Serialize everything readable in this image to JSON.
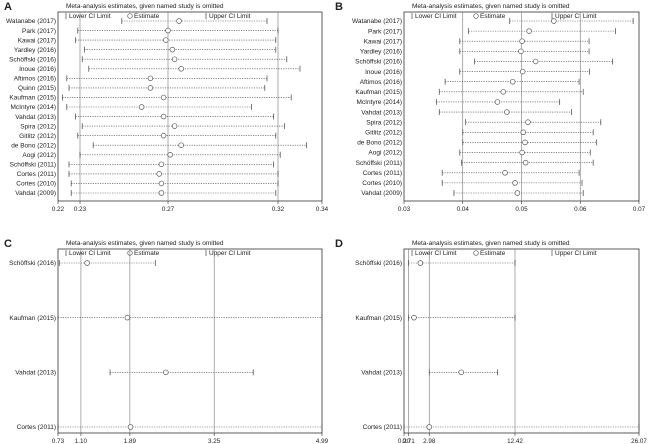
{
  "chart_data": [
    {
      "panel": "A",
      "type": "forest",
      "title": "Meta-analysis estimates, given named study is omitted",
      "legend": [
        "Lower CI Limit",
        "Estimate",
        "Upper CI Limit"
      ],
      "xticks": [
        0.22,
        0.23,
        0.27,
        0.32,
        0.34
      ],
      "xlim": [
        0.22,
        0.34
      ],
      "overall": {
        "lower": 0.23,
        "estimate": 0.27,
        "upper": 0.32
      },
      "studies": [
        {
          "name": "Watanabe (2017)",
          "lower": 0.249,
          "estimate": 0.275,
          "upper": 0.315
        },
        {
          "name": "Park (2017)",
          "lower": 0.229,
          "estimate": 0.27,
          "upper": 0.32
        },
        {
          "name": "Kawai (2017)",
          "lower": 0.228,
          "estimate": 0.269,
          "upper": 0.319
        },
        {
          "name": "Yardley (2016)",
          "lower": 0.232,
          "estimate": 0.272,
          "upper": 0.319
        },
        {
          "name": "Schöffski (2016)",
          "lower": 0.231,
          "estimate": 0.273,
          "upper": 0.324
        },
        {
          "name": "Inoue (2016)",
          "lower": 0.234,
          "estimate": 0.276,
          "upper": 0.33
        },
        {
          "name": "Aftimos (2016)",
          "lower": 0.224,
          "estimate": 0.262,
          "upper": 0.315
        },
        {
          "name": "Quinn (2015)",
          "lower": 0.225,
          "estimate": 0.262,
          "upper": 0.314
        },
        {
          "name": "Kaufman (2015)",
          "lower": 0.222,
          "estimate": 0.268,
          "upper": 0.326
        },
        {
          "name": "McIntyre (2014)",
          "lower": 0.224,
          "estimate": 0.258,
          "upper": 0.308
        },
        {
          "name": "Vahdat (2013)",
          "lower": 0.228,
          "estimate": 0.268,
          "upper": 0.318
        },
        {
          "name": "Spira (2012)",
          "lower": 0.231,
          "estimate": 0.273,
          "upper": 0.323
        },
        {
          "name": "Gitlitz (2012)",
          "lower": 0.229,
          "estimate": 0.268,
          "upper": 0.319
        },
        {
          "name": "de Bono (2012)",
          "lower": 0.236,
          "estimate": 0.276,
          "upper": 0.333
        },
        {
          "name": "Aogi (2012)",
          "lower": 0.23,
          "estimate": 0.271,
          "upper": 0.321
        },
        {
          "name": "Schöffski (2011)",
          "lower": 0.225,
          "estimate": 0.267,
          "upper": 0.318
        },
        {
          "name": "Cortes (2011)",
          "lower": 0.225,
          "estimate": 0.266,
          "upper": 0.32
        },
        {
          "name": "Cortes (2010)",
          "lower": 0.226,
          "estimate": 0.267,
          "upper": 0.32
        },
        {
          "name": "Vahdat (2009)",
          "lower": 0.226,
          "estimate": 0.267,
          "upper": 0.319
        }
      ]
    },
    {
      "panel": "B",
      "type": "forest",
      "title": "Meta-analysis estimates, given named study is omitted",
      "legend": [
        "Lower CI Limit",
        "Estimate",
        "Upper CI Limit"
      ],
      "xticks": [
        0.03,
        0.04,
        0.05,
        0.06,
        0.07
      ],
      "xlim": [
        0.03,
        0.07
      ],
      "overall": {
        "lower": 0.04,
        "estimate": 0.05,
        "upper": 0.06
      },
      "studies": [
        {
          "name": "Watanabe (2017)",
          "lower": 0.048,
          "estimate": 0.0555,
          "upper": 0.069
        },
        {
          "name": "Park (2017)",
          "lower": 0.041,
          "estimate": 0.0513,
          "upper": 0.066
        },
        {
          "name": "Kawai (2017)",
          "lower": 0.0395,
          "estimate": 0.0501,
          "upper": 0.0615
        },
        {
          "name": "Yardley (2016)",
          "lower": 0.0395,
          "estimate": 0.0499,
          "upper": 0.0615
        },
        {
          "name": "Schöffski (2016)",
          "lower": 0.042,
          "estimate": 0.0524,
          "upper": 0.0655
        },
        {
          "name": "Inoue (2016)",
          "lower": 0.0395,
          "estimate": 0.0502,
          "upper": 0.0616
        },
        {
          "name": "Aftimos (2016)",
          "lower": 0.037,
          "estimate": 0.0485,
          "upper": 0.0598
        },
        {
          "name": "Kaufman (2015)",
          "lower": 0.036,
          "estimate": 0.0469,
          "upper": 0.0605
        },
        {
          "name": "McIntyre (2014)",
          "lower": 0.0355,
          "estimate": 0.0459,
          "upper": 0.0565
        },
        {
          "name": "Vahdat (2013)",
          "lower": 0.036,
          "estimate": 0.0475,
          "upper": 0.0585
        },
        {
          "name": "Spira (2012)",
          "lower": 0.0405,
          "estimate": 0.0511,
          "upper": 0.0635
        },
        {
          "name": "Gitlitz (2012)",
          "lower": 0.04,
          "estimate": 0.0503,
          "upper": 0.0622
        },
        {
          "name": "de Bono (2012)",
          "lower": 0.04,
          "estimate": 0.0506,
          "upper": 0.0628
        },
        {
          "name": "Aogi (2012)",
          "lower": 0.0395,
          "estimate": 0.0501,
          "upper": 0.0617
        },
        {
          "name": "Schöffski (2011)",
          "lower": 0.0398,
          "estimate": 0.0507,
          "upper": 0.0622
        },
        {
          "name": "Cortes (2011)",
          "lower": 0.0365,
          "estimate": 0.0472,
          "upper": 0.0598
        },
        {
          "name": "Cortes (2010)",
          "lower": 0.0365,
          "estimate": 0.0489,
          "upper": 0.0603
        },
        {
          "name": "Vahdat (2009)",
          "lower": 0.0385,
          "estimate": 0.0493,
          "upper": 0.0605
        }
      ]
    },
    {
      "panel": "C",
      "type": "forest",
      "title": "Meta-analysis estimates, given named study is omitted",
      "legend": [
        "Lower CI Limit",
        "Estimate",
        "Upper CI Limit"
      ],
      "xticks": [
        0.73,
        1.1,
        1.89,
        3.25,
        4.99
      ],
      "xtick_labels": [
        "0.73",
        "1.10",
        "1.89",
        "3.25",
        "4.99"
      ],
      "xlim": [
        0.73,
        4.99
      ],
      "overall": {
        "lower": 1.1,
        "estimate": 1.89,
        "upper": 3.25
      },
      "studies": [
        {
          "name": "Schöffski (2016)",
          "lower": 0.75,
          "estimate": 1.2,
          "upper": 2.3
        },
        {
          "name": "Kaufman (2015)",
          "lower": 0.73,
          "estimate": 1.85,
          "upper": 4.99
        },
        {
          "name": "Vahdat (2013)",
          "lower": 1.57,
          "estimate": 2.47,
          "upper": 3.88
        },
        {
          "name": "Cortes (2011)",
          "lower": 0.73,
          "estimate": 1.9,
          "upper": 4.99
        }
      ]
    },
    {
      "panel": "D",
      "type": "forest",
      "title": "Meta-analysis estimates, given named study is omitted",
      "legend": [
        "Lower CI Limit",
        "Estimate",
        "Upper CI Limit"
      ],
      "xticks": [
        0.2,
        0.71,
        2.98,
        12.42,
        26.07
      ],
      "xtick_labels": [
        "0.20",
        "0.71",
        "2.98",
        "12.42",
        "26.07"
      ],
      "xlim": [
        0.2,
        26.07
      ],
      "overall": {
        "lower": 0.71,
        "estimate": 2.98,
        "upper": 12.42
      },
      "studies": [
        {
          "name": "Schöffski (2016)",
          "lower": 0.71,
          "estimate": 2.0,
          "upper": 12.42
        },
        {
          "name": "Kaufman (2015)",
          "lower": 0.71,
          "estimate": 1.3,
          "upper": 12.42
        },
        {
          "name": "Vahdat (2013)",
          "lower": 2.98,
          "estimate": 6.5,
          "upper": 10.5
        },
        {
          "name": "Cortes (2011)",
          "lower": 0.2,
          "estimate": 2.98,
          "upper": 26.07
        }
      ]
    }
  ]
}
